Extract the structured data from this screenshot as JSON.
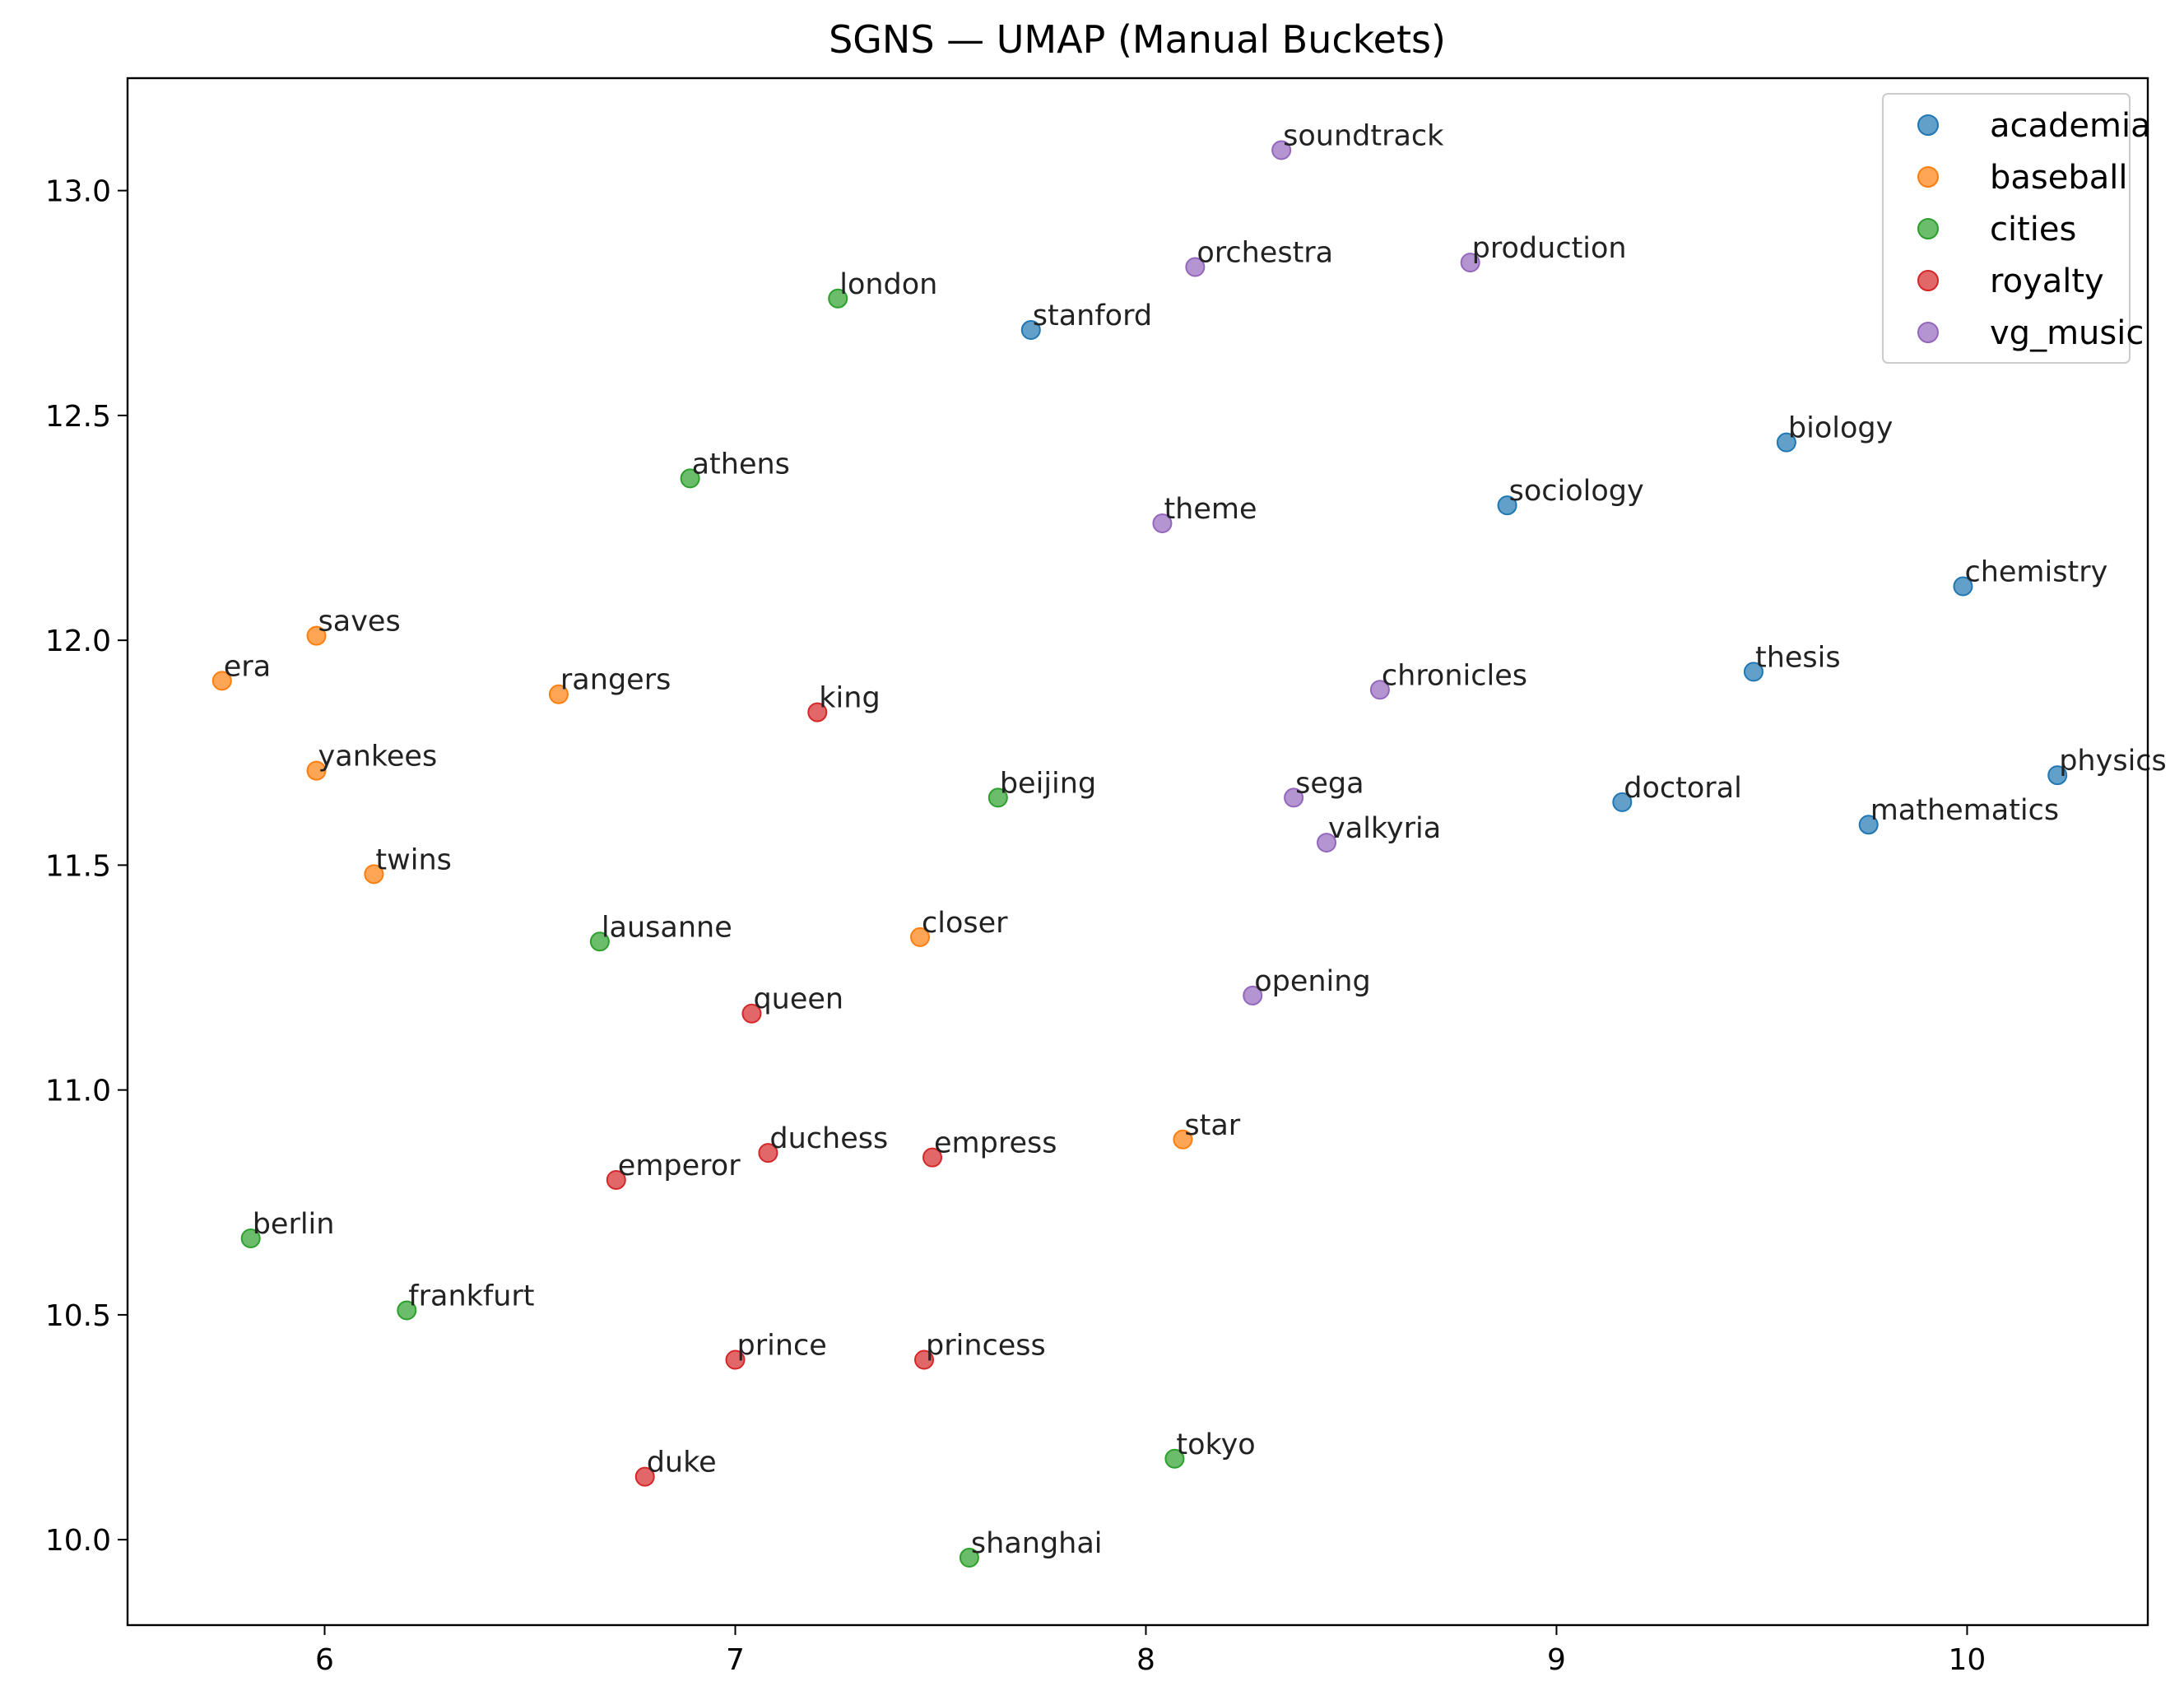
{
  "chart_data": {
    "type": "scatter",
    "title": "SGNS — UMAP (Manual Buckets)",
    "xlabel": "",
    "ylabel": "",
    "xlim": [
      5.52,
      10.44
    ],
    "ylim": [
      9.81,
      13.25
    ],
    "x_ticks": [
      6,
      7,
      8,
      9,
      10
    ],
    "x_tick_labels": [
      "6",
      "7",
      "8",
      "9",
      "10"
    ],
    "y_ticks": [
      10.0,
      10.5,
      11.0,
      11.5,
      12.0,
      12.5,
      13.0
    ],
    "y_tick_labels": [
      "10.0",
      "10.5",
      "11.0",
      "11.5",
      "12.0",
      "12.5",
      "13.0"
    ],
    "grid": false,
    "legend_position": "top-right",
    "series": [
      {
        "name": "academia",
        "color": "#1f77b4",
        "points": [
          {
            "label": "stanford",
            "x": 7.72,
            "y": 12.69
          },
          {
            "label": "biology",
            "x": 9.56,
            "y": 12.44
          },
          {
            "label": "sociology",
            "x": 8.88,
            "y": 12.3
          },
          {
            "label": "chemistry",
            "x": 9.99,
            "y": 12.12
          },
          {
            "label": "thesis",
            "x": 9.48,
            "y": 11.93
          },
          {
            "label": "physics",
            "x": 10.22,
            "y": 11.7
          },
          {
            "label": "doctoral",
            "x": 9.16,
            "y": 11.64
          },
          {
            "label": "mathematics",
            "x": 9.76,
            "y": 11.59
          }
        ]
      },
      {
        "name": "baseball",
        "color": "#ff7f0e",
        "points": [
          {
            "label": "saves",
            "x": 5.98,
            "y": 12.01
          },
          {
            "label": "era",
            "x": 5.75,
            "y": 11.91
          },
          {
            "label": "rangers",
            "x": 6.57,
            "y": 11.88
          },
          {
            "label": "yankees",
            "x": 5.98,
            "y": 11.71
          },
          {
            "label": "twins",
            "x": 6.12,
            "y": 11.48
          },
          {
            "label": "closer",
            "x": 7.45,
            "y": 11.34
          },
          {
            "label": "star",
            "x": 8.09,
            "y": 10.89
          }
        ]
      },
      {
        "name": "cities",
        "color": "#2ca02c",
        "points": [
          {
            "label": "london",
            "x": 7.25,
            "y": 12.76
          },
          {
            "label": "athens",
            "x": 6.89,
            "y": 12.36
          },
          {
            "label": "beijing",
            "x": 7.64,
            "y": 11.65
          },
          {
            "label": "lausanne",
            "x": 6.67,
            "y": 11.33
          },
          {
            "label": "berlin",
            "x": 5.82,
            "y": 10.67
          },
          {
            "label": "frankfurt",
            "x": 6.2,
            "y": 10.51
          },
          {
            "label": "tokyo",
            "x": 8.07,
            "y": 10.18
          },
          {
            "label": "shanghai",
            "x": 7.57,
            "y": 9.96
          }
        ]
      },
      {
        "name": "royalty",
        "color": "#d62728",
        "points": [
          {
            "label": "king",
            "x": 7.2,
            "y": 11.84
          },
          {
            "label": "queen",
            "x": 7.04,
            "y": 11.17
          },
          {
            "label": "duchess",
            "x": 7.08,
            "y": 10.86
          },
          {
            "label": "empress",
            "x": 7.48,
            "y": 10.85
          },
          {
            "label": "emperor",
            "x": 6.71,
            "y": 10.8
          },
          {
            "label": "prince",
            "x": 7.0,
            "y": 10.4
          },
          {
            "label": "princess",
            "x": 7.46,
            "y": 10.4
          },
          {
            "label": "duke",
            "x": 6.78,
            "y": 10.14
          }
        ]
      },
      {
        "name": "vg_music",
        "color": "#9467bd",
        "points": [
          {
            "label": "soundtrack",
            "x": 8.33,
            "y": 13.09
          },
          {
            "label": "orchestra",
            "x": 8.12,
            "y": 12.83
          },
          {
            "label": "production",
            "x": 8.79,
            "y": 12.84
          },
          {
            "label": "theme",
            "x": 8.04,
            "y": 12.26
          },
          {
            "label": "chronicles",
            "x": 8.57,
            "y": 11.89
          },
          {
            "label": "sega",
            "x": 8.36,
            "y": 11.65
          },
          {
            "label": "valkyria",
            "x": 8.44,
            "y": 11.55
          },
          {
            "label": "opening",
            "x": 8.26,
            "y": 11.21
          }
        ]
      }
    ]
  }
}
